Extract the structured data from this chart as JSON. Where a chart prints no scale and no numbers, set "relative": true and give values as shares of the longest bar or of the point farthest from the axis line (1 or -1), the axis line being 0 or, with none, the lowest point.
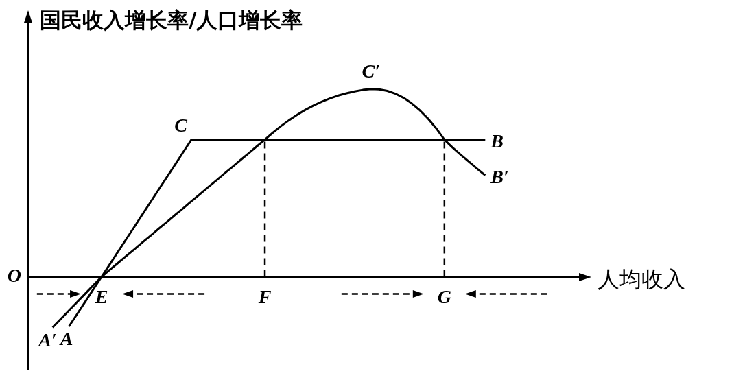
{
  "chart_data": {
    "type": "line",
    "ylabel": "国民收入增长率/人口增长率",
    "xlabel": "人均收入",
    "relative": true,
    "categories": [
      null,
      null,
      null,
      null,
      null,
      null,
      null,
      null,
      null,
      "E",
      null,
      null,
      null,
      null,
      null,
      null,
      null,
      null,
      null,
      null,
      null,
      null,
      null,
      null,
      null,
      null,
      null,
      null,
      null,
      "F",
      null,
      null,
      null,
      null,
      null,
      null,
      null,
      null,
      null,
      null,
      null,
      null,
      null,
      null,
      null,
      null,
      null,
      null,
      null,
      null,
      null,
      "G",
      null,
      null,
      null,
      null,
      null,
      null,
      null,
      null,
      null,
      null,
      null,
      null,
      null,
      null,
      null,
      null,
      null,
      null
    ],
    "series": [
      {
        "color": "#000000",
        "values": [
          null,
          null,
          null,
          null,
          null,
          -0.265,
          -0.199,
          -0.133,
          -0.066,
          0.0,
          0.066,
          0.133,
          0.199,
          0.265,
          0.332,
          0.398,
          0.465,
          0.531,
          0.597,
          0.664,
          0.73,
          0.73,
          0.73,
          0.73,
          0.73,
          0.73,
          0.73,
          0.73,
          0.73,
          0.73,
          0.73,
          0.73,
          0.73,
          0.73,
          0.73,
          0.73,
          0.73,
          0.73,
          0.73,
          0.73,
          0.73,
          0.73,
          0.73,
          0.73,
          0.73,
          0.73,
          0.73,
          0.73,
          0.73,
          0.73,
          0.73,
          0.73,
          0.73,
          0.73,
          0.73,
          0.73,
          0.73,
          null,
          null,
          null,
          null,
          null,
          null,
          null,
          null,
          null,
          null,
          null,
          null,
          null
        ]
      },
      {
        "color": "#000000",
        "values": [
          null,
          null,
          null,
          -0.27,
          -0.225,
          -0.18,
          -0.135,
          -0.09,
          -0.045,
          0.0,
          0.037,
          0.073,
          0.11,
          0.146,
          0.183,
          0.219,
          0.256,
          0.292,
          0.329,
          0.365,
          0.402,
          0.438,
          0.475,
          0.511,
          0.548,
          0.584,
          0.621,
          0.657,
          0.694,
          0.73,
          0.768,
          0.803,
          0.835,
          0.864,
          0.89,
          0.913,
          0.933,
          0.95,
          0.965,
          0.977,
          0.987,
          0.995,
          1.0,
          0.998,
          0.99,
          0.975,
          0.953,
          0.923,
          0.886,
          0.842,
          0.79,
          0.73,
          0.688,
          0.65,
          0.613,
          0.576,
          0.54,
          null,
          null,
          null,
          null,
          null,
          null,
          null,
          null,
          null,
          null,
          null,
          null,
          null
        ]
      }
    ],
    "ref_lines": [
      {
        "axis": "x",
        "value": "F",
        "line_style": "dashed"
      },
      {
        "axis": "x",
        "value": "G",
        "line_style": "dashed"
      }
    ],
    "annotations": [
      "O",
      "A′",
      "A",
      "C",
      "C′",
      "B",
      "B′"
    ]
  }
}
